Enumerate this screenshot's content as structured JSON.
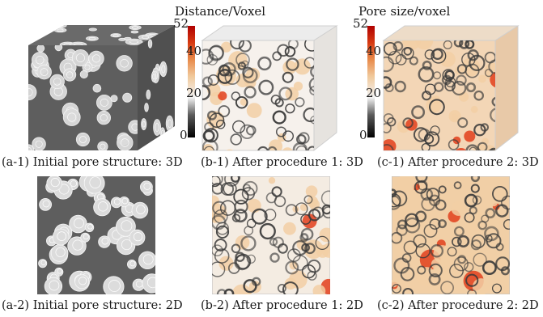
{
  "figure": {
    "colorbars": [
      {
        "title": "Distance/Voxel",
        "ticks": [
          "52",
          "40",
          "20",
          "0"
        ],
        "stops": [
          "#000000",
          "#5a5a5a",
          "#f4f4f4",
          "#f0c89a",
          "#e88a4a",
          "#d63a12",
          "#b00000"
        ]
      },
      {
        "title": "Pore size/voxel",
        "ticks": [
          "52",
          "40",
          "20",
          "0"
        ],
        "stops": [
          "#000000",
          "#5a5a5a",
          "#f4f4f4",
          "#f0c89a",
          "#e88a4a",
          "#d63a12",
          "#b00000"
        ]
      }
    ],
    "captions": {
      "a1": "(a-1) Initial pore structure: 3D",
      "b1": "(b-1) After procedure 1: 3D",
      "c1": "(c-1) After procedure 2: 3D",
      "a2": "(a-2) Initial pore structure: 2D",
      "b2": "(b-2) After procedure 1: 2D",
      "c2": "(c-2) After procedure 2: 2D"
    },
    "colors": {
      "solid": "#5e5e5e",
      "pore": "#dcdcdc",
      "edge": "#f6f6f6",
      "ring": "#3a3a3a",
      "peach": "#f2cfa4",
      "red": "#e2401c"
    }
  }
}
